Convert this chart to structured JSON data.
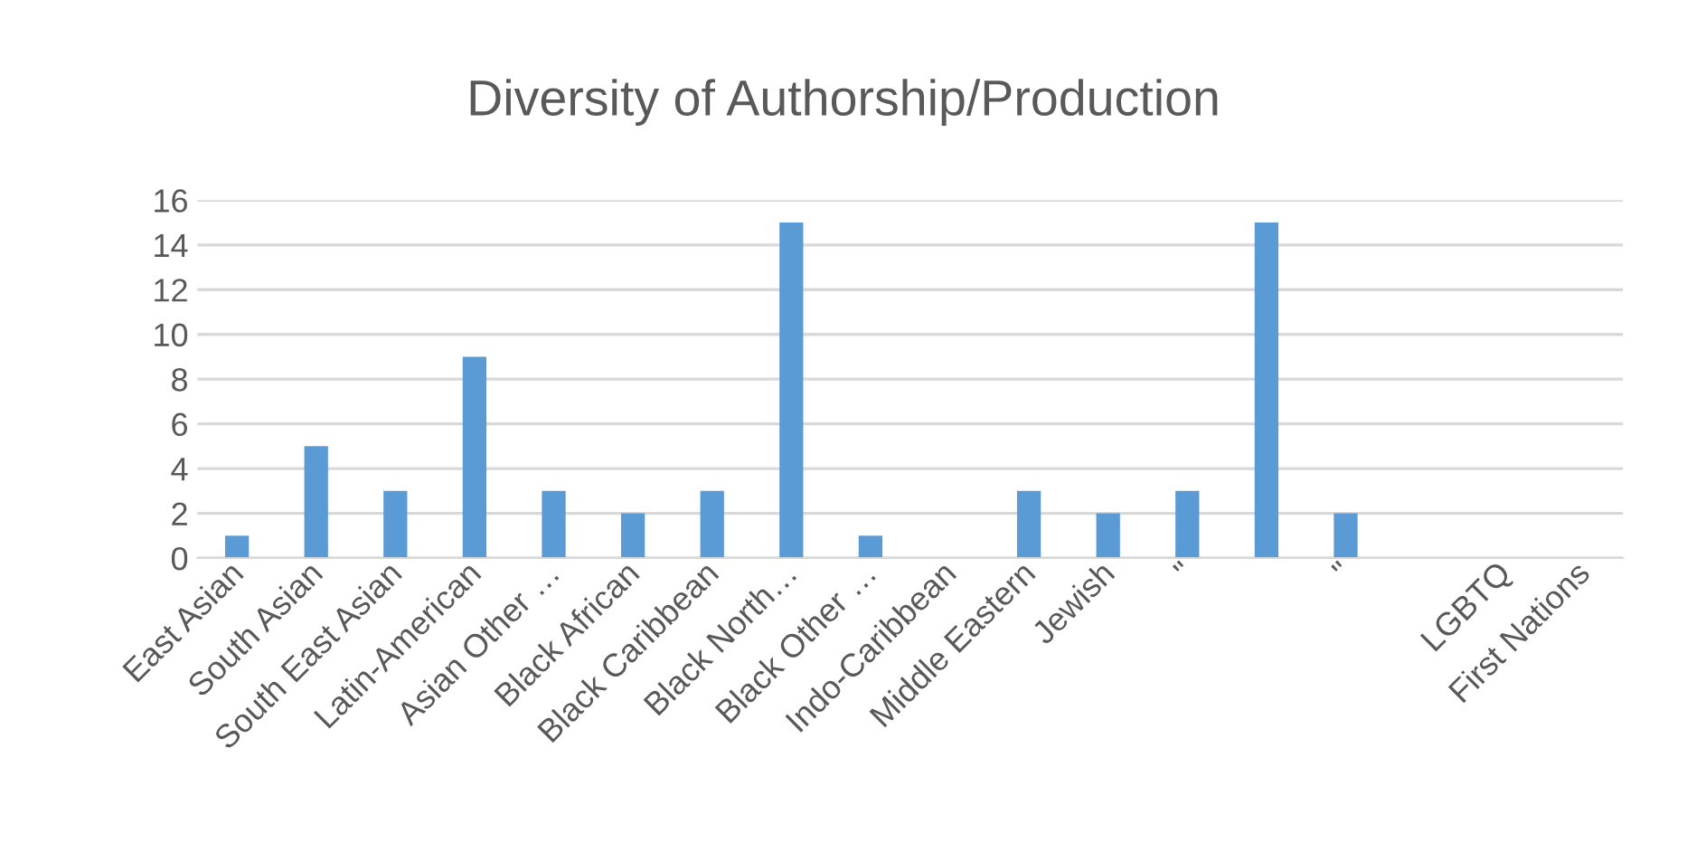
{
  "chart_data": {
    "type": "bar",
    "title": "Diversity of Authorship/Production",
    "categories": [
      "East Asian",
      "South Asian",
      "South East Asian",
      "Latin-American",
      "Asian Other …",
      "Black African",
      "Black Caribbean",
      "Black North…",
      "Black Other …",
      "Indo-Caribbean",
      "Middle Eastern",
      "Jewish",
      "\"",
      null,
      "\"",
      null,
      "LGBTQ",
      "First Nations"
    ],
    "values": [
      1,
      5,
      3,
      9,
      3,
      2,
      3,
      15,
      1,
      null,
      3,
      2,
      3,
      15,
      2,
      null,
      null,
      null
    ],
    "color": "#5b9bd5",
    "ylim": [
      0,
      16
    ],
    "yticks": [
      0,
      2,
      4,
      6,
      8,
      10,
      12,
      14,
      16
    ],
    "grid": "y",
    "legend": false
  }
}
